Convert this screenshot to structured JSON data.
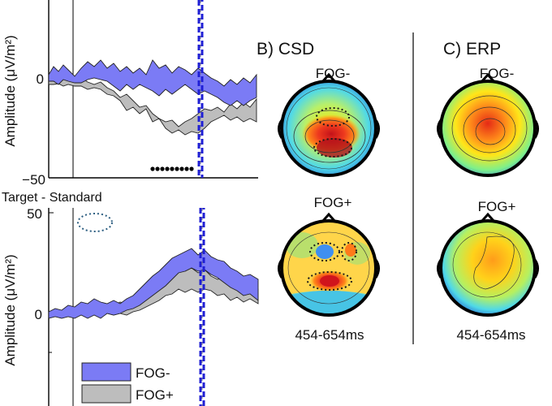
{
  "panel_top": {
    "ylabel": "Amplitude (μV/m²)",
    "ticks": [
      "0",
      "−50"
    ]
  },
  "panel_bottom": {
    "title": "Target - Standard",
    "ylabel": "Amplitude (μV/m²)",
    "ticks": [
      "50",
      "0"
    ]
  },
  "legend": [
    {
      "label": "FOG-",
      "color": "#7b7bf5"
    },
    {
      "label": "FOG+",
      "color": "#bdbdbd"
    }
  ],
  "panel_b": {
    "title": "B) CSD",
    "maps": [
      {
        "label": "FOG-"
      },
      {
        "label": "FOG+"
      }
    ],
    "window": "454-654ms"
  },
  "panel_c": {
    "title": "C) ERP",
    "maps": [
      {
        "label": "FOG-"
      },
      {
        "label": "FOG+"
      }
    ],
    "window": "454-654ms"
  },
  "colors": {
    "fog_minus": "#7b7bf5",
    "fog_plus": "#bdbdbd",
    "marker_blue": "#1f1fd6"
  },
  "chart_data": [
    {
      "type": "area",
      "series": [
        {
          "name": "FOG-",
          "values": [
            0,
            2,
            4,
            5,
            3,
            4,
            -2,
            -4,
            2,
            5,
            0,
            -3,
            -4,
            -6,
            -5
          ]
        },
        {
          "name": "FOG+",
          "values": [
            0,
            -1,
            0,
            -2,
            -5,
            -8,
            -15,
            -20,
            -25,
            -28,
            -28,
            -25,
            -22,
            -18,
            -19
          ]
        }
      ],
      "ylim": [
        -50,
        50
      ],
      "grid": false
    },
    {
      "type": "area",
      "title": "Target - Standard",
      "series": [
        {
          "name": "FOG-",
          "values": [
            0,
            1,
            2,
            3,
            5,
            6,
            4,
            8,
            15,
            22,
            27,
            26,
            22,
            15,
            12
          ]
        },
        {
          "name": "FOG+",
          "values": [
            0,
            1,
            1,
            2,
            3,
            3,
            3,
            6,
            10,
            16,
            20,
            20,
            17,
            13,
            10
          ]
        }
      ],
      "ylim": [
        -50,
        50
      ],
      "grid": false
    }
  ]
}
